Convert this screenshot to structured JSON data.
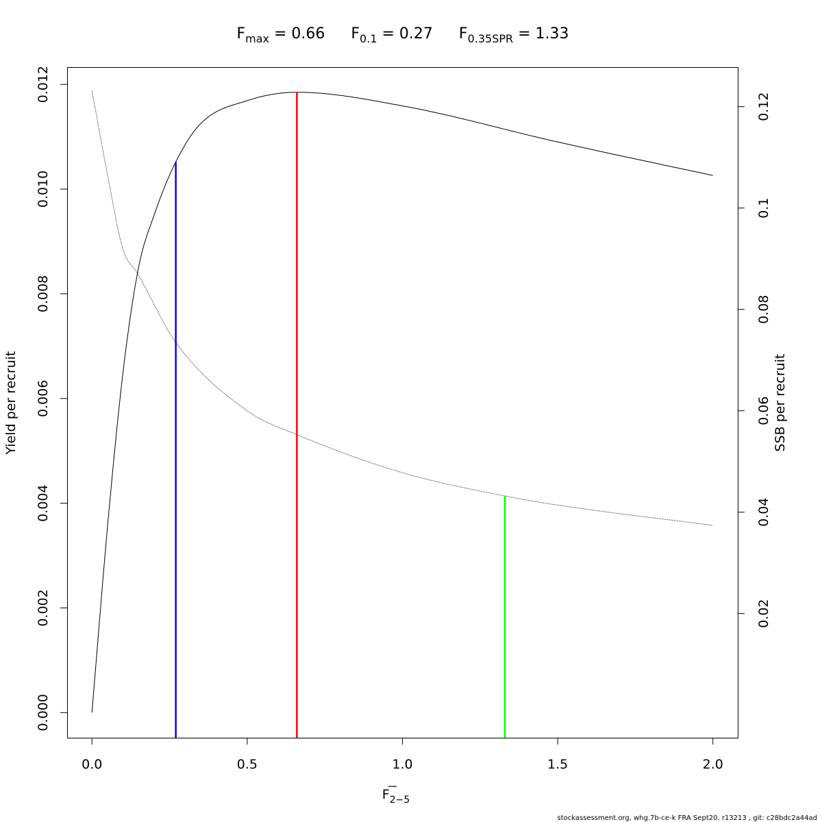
{
  "chart_data": {
    "type": "line",
    "title_parts": [
      {
        "main": "F",
        "sub": "max",
        "rest": " = 0.66"
      },
      {
        "main": "F",
        "sub": "0.1",
        "rest": " = 0.27"
      },
      {
        "main": "F",
        "sub": "0.35SPR",
        "rest": " = 1.33"
      }
    ],
    "xlabel_main": "F",
    "xlabel_sub": "2−5",
    "ylabel_left": "Yield per recruit",
    "ylabel_right": "SSB per recruit",
    "xlim": [
      -0.08,
      2.08
    ],
    "ylim_left": [
      -0.00048,
      0.01233
    ],
    "ylim_right": [
      -0.0045,
      0.1278
    ],
    "x_ticks": [
      0.0,
      0.5,
      1.0,
      1.5,
      2.0
    ],
    "x_tick_labels": [
      "0.0",
      "0.5",
      "1.0",
      "1.5",
      "2.0"
    ],
    "y_left_ticks": [
      0.0,
      0.002,
      0.004,
      0.006,
      0.008,
      0.01,
      0.012
    ],
    "y_left_tick_labels": [
      "0.000",
      "0.002",
      "0.004",
      "0.006",
      "0.008",
      "0.010",
      "0.012"
    ],
    "y_right_ticks": [
      0.02,
      0.04,
      0.06,
      0.08,
      0.1,
      0.12
    ],
    "y_right_tick_labels": [
      "0.02",
      "0.04",
      "0.06",
      "0.08",
      "0.1",
      "0.12"
    ],
    "series": [
      {
        "axis": "left",
        "style": "solid",
        "color": "#000000",
        "x": [
          0,
          0.02,
          0.05,
          0.1,
          0.15,
          0.2,
          0.27,
          0.35,
          0.5,
          0.66,
          1.0,
          1.5,
          2.0
        ],
        "y": [
          0,
          0.00145,
          0.00355,
          0.0065,
          0.0085,
          0.0095,
          0.01052,
          0.01125,
          0.01169,
          0.01185,
          0.01159,
          0.0109,
          0.01026
        ]
      },
      {
        "axis": "right",
        "style": "dotted",
        "color": "#000000",
        "x": [
          0,
          0.05,
          0.1,
          0.145,
          0.27,
          0.5,
          0.66,
          1.0,
          1.33,
          1.5,
          2.0
        ],
        "y": [
          0.1231,
          0.1066,
          0.0918,
          0.0873,
          0.0735,
          0.06,
          0.0553,
          0.0478,
          0.0432,
          0.0414,
          0.0374
        ]
      }
    ],
    "reference_lines": [
      {
        "label": "F0.1",
        "x": 0.27,
        "axis": "left",
        "top": 0.01052,
        "color": "#0000ff"
      },
      {
        "label": "Fmax",
        "x": 0.66,
        "axis": "left",
        "top": 0.01185,
        "color": "#ff0000"
      },
      {
        "label": "F0.35SPR",
        "x": 1.33,
        "axis": "right",
        "top": 0.0432,
        "color": "#00ff00"
      }
    ]
  },
  "footer": "stockassessment.org, whg.7b-ce-k  FRA  Sept20, r13213 , git: c28bdc2a44ad"
}
